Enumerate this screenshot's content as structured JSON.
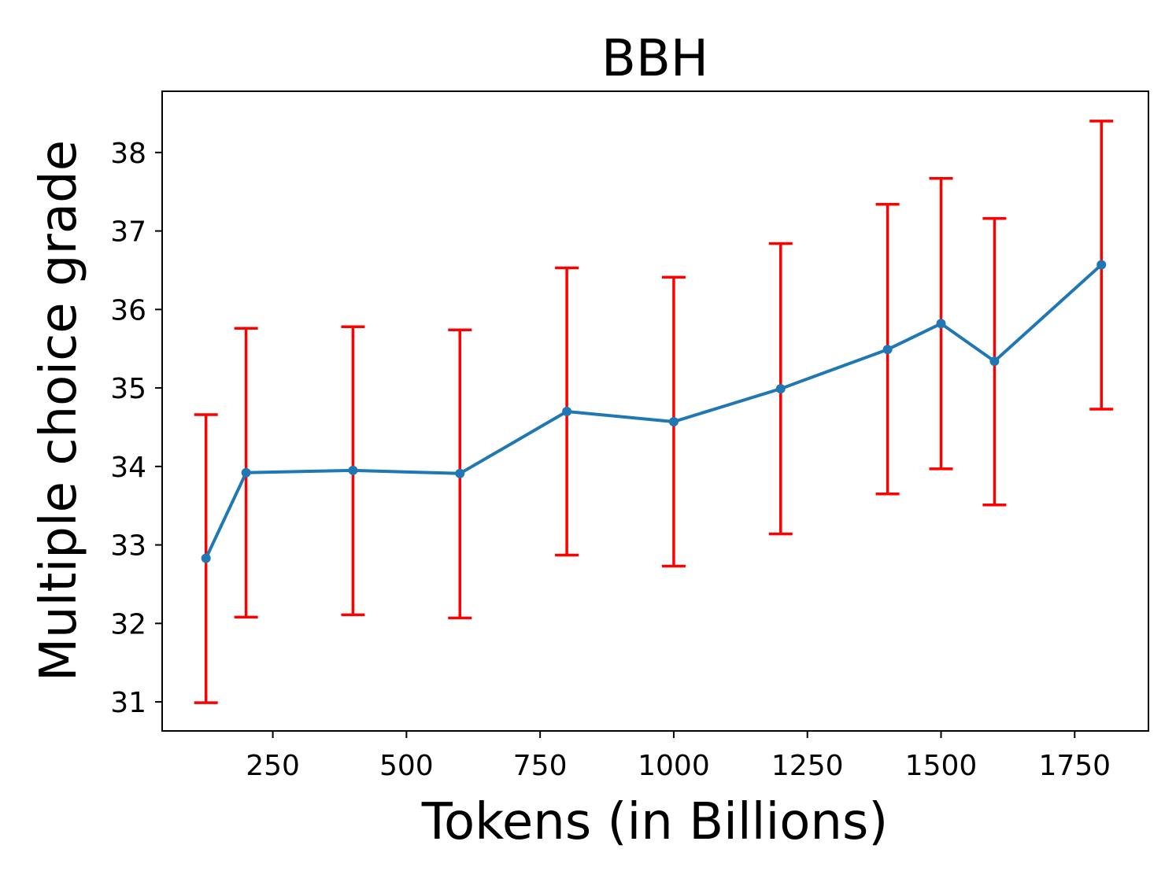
{
  "chart_data": {
    "type": "line",
    "title": "BBH",
    "xlabel": "Tokens (in Billions)",
    "ylabel": "Multiple choice grade",
    "xlim": [
      43,
      1888
    ],
    "ylim": [
      30.63,
      38.78
    ],
    "xticks": [
      250,
      500,
      750,
      1000,
      1250,
      1500,
      1750
    ],
    "yticks": [
      31,
      32,
      33,
      34,
      35,
      36,
      37,
      38
    ],
    "grid": false,
    "legend": "none",
    "series": [
      {
        "color": "#1f77b4",
        "errorbar_color": "#ff0000",
        "points": [
          {
            "x": 125,
            "y": 32.83,
            "err_low": 30.99,
            "err_high": 34.66
          },
          {
            "x": 200,
            "y": 33.92,
            "err_low": 32.08,
            "err_high": 35.76
          },
          {
            "x": 400,
            "y": 33.95,
            "err_low": 32.11,
            "err_high": 35.78
          },
          {
            "x": 600,
            "y": 33.91,
            "err_low": 32.07,
            "err_high": 35.74
          },
          {
            "x": 800,
            "y": 34.7,
            "err_low": 32.87,
            "err_high": 36.53
          },
          {
            "x": 1000,
            "y": 34.57,
            "err_low": 32.73,
            "err_high": 36.41
          },
          {
            "x": 1200,
            "y": 34.99,
            "err_low": 33.14,
            "err_high": 36.84
          },
          {
            "x": 1400,
            "y": 35.49,
            "err_low": 33.65,
            "err_high": 37.34
          },
          {
            "x": 1500,
            "y": 35.82,
            "err_low": 33.97,
            "err_high": 37.67
          },
          {
            "x": 1600,
            "y": 35.34,
            "err_low": 33.51,
            "err_high": 37.16
          },
          {
            "x": 1800,
            "y": 36.57,
            "err_low": 34.73,
            "err_high": 38.4
          }
        ]
      }
    ]
  }
}
